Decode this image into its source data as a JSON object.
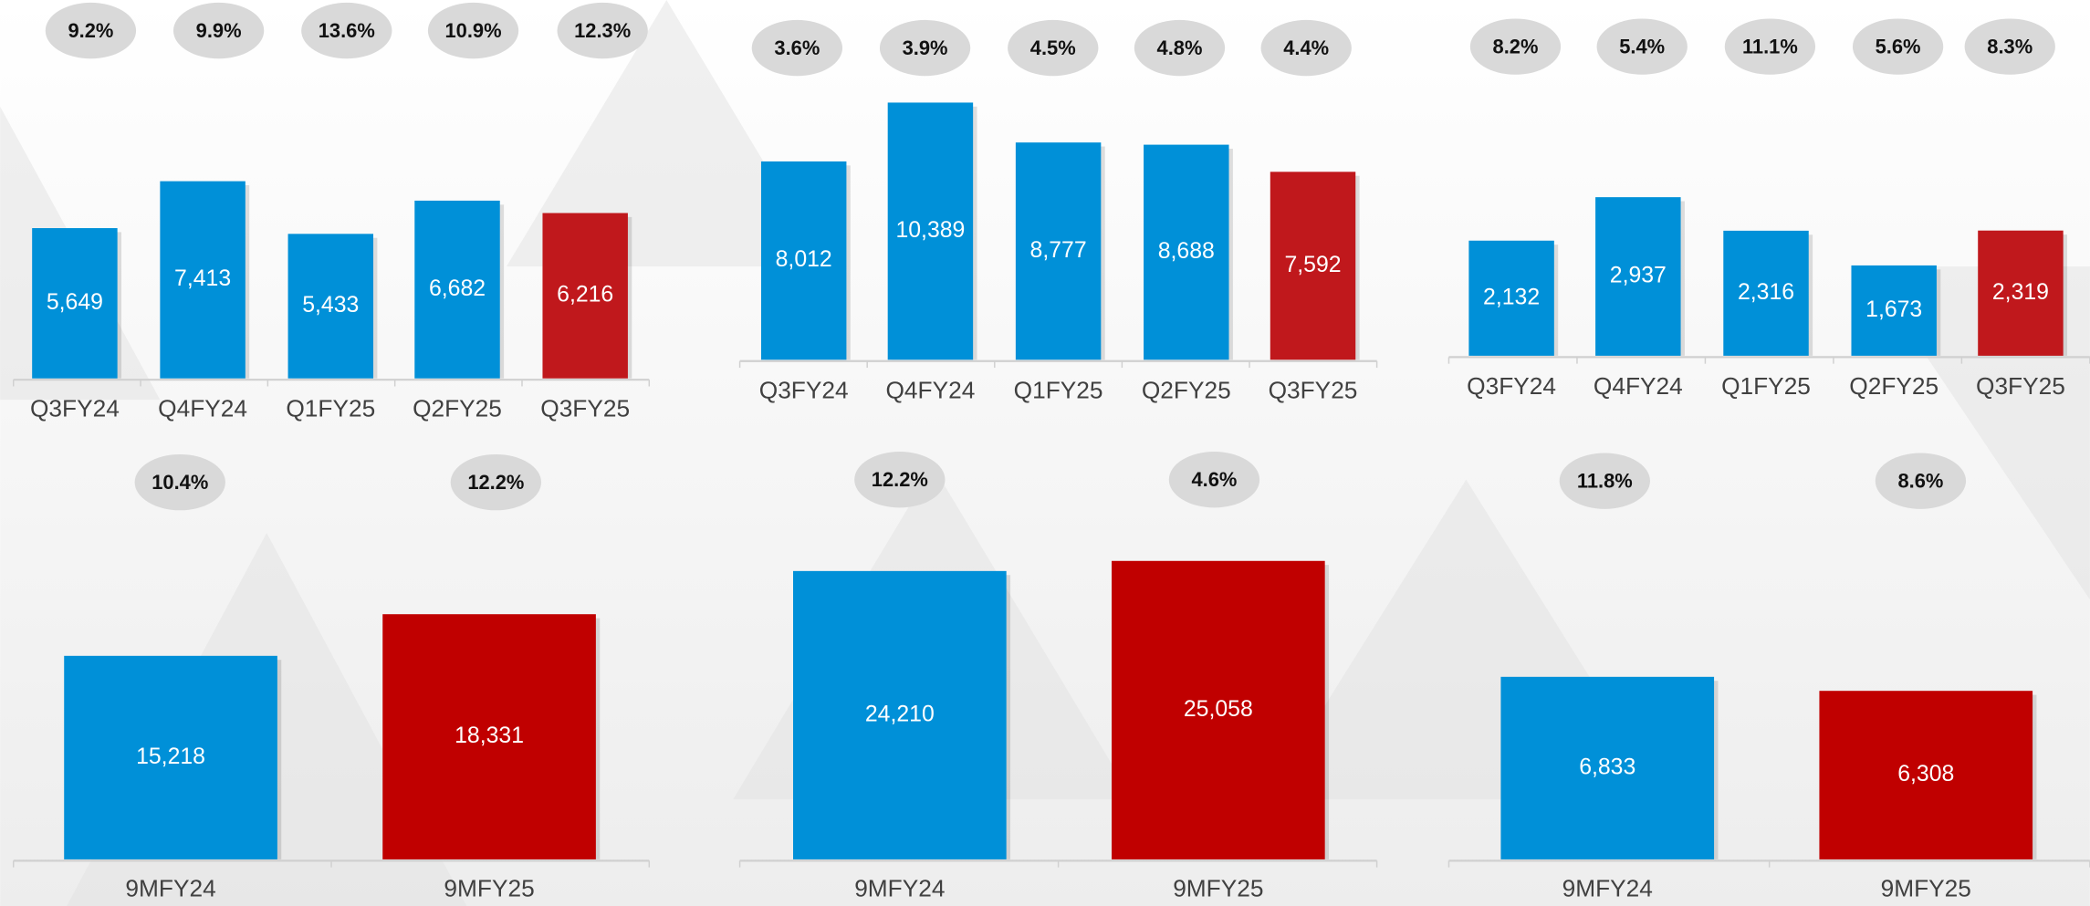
{
  "chart_data": [
    {
      "type": "bar",
      "categories": [
        "Q3FY24",
        "Q4FY24",
        "Q1FY25",
        "Q2FY25",
        "Q3FY25"
      ],
      "values": [
        5649,
        7413,
        5433,
        6682,
        6216
      ],
      "value_labels": [
        "5,649",
        "7,413",
        "5,433",
        "6,682",
        "6,216"
      ],
      "colors": [
        "#0090d8",
        "#0090d8",
        "#0090d8",
        "#0090d8",
        "#c0181c"
      ],
      "annotations": [
        "9.2%",
        "9.9%",
        "13.6%",
        "10.9%",
        "12.3%"
      ]
    },
    {
      "type": "bar",
      "categories": [
        "Q3FY24",
        "Q4FY24",
        "Q1FY25",
        "Q2FY25",
        "Q3FY25"
      ],
      "values": [
        8012,
        10389,
        8777,
        8688,
        7592
      ],
      "value_labels": [
        "8,012",
        "10,389",
        "8,777",
        "8,688",
        "7,592"
      ],
      "colors": [
        "#0090d8",
        "#0090d8",
        "#0090d8",
        "#0090d8",
        "#c0181c"
      ],
      "annotations": [
        "3.6%",
        "3.9%",
        "4.5%",
        "4.8%",
        "4.4%"
      ]
    },
    {
      "type": "bar",
      "categories": [
        "Q3FY24",
        "Q4FY24",
        "Q1FY25",
        "Q2FY25",
        "Q3FY25"
      ],
      "values": [
        2132,
        2937,
        2316,
        1673,
        2319
      ],
      "value_labels": [
        "2,132",
        "2,937",
        "2,316",
        "1,673",
        "2,319"
      ],
      "colors": [
        "#0090d8",
        "#0090d8",
        "#0090d8",
        "#0090d8",
        "#c0181c"
      ],
      "annotations": [
        "8.2%",
        "5.4%",
        "11.1%",
        "5.6%",
        "8.3%"
      ]
    },
    {
      "type": "bar",
      "categories": [
        "9MFY24",
        "9MFY25"
      ],
      "values": [
        15218,
        18331
      ],
      "value_labels": [
        "15,218",
        "18,331"
      ],
      "colors": [
        "#0090d8",
        "#c00000"
      ],
      "annotations": [
        "10.4%",
        "12.2%"
      ]
    },
    {
      "type": "bar",
      "categories": [
        "9MFY24",
        "9MFY25"
      ],
      "values": [
        24210,
        25058
      ],
      "value_labels": [
        "24,210",
        "25,058"
      ],
      "colors": [
        "#0090d8",
        "#c00000"
      ],
      "annotations": [
        "12.2%",
        "4.6%"
      ]
    },
    {
      "type": "bar",
      "categories": [
        "9MFY24",
        "9MFY25"
      ],
      "values": [
        6833,
        6308
      ],
      "value_labels": [
        "6,833",
        "6,308"
      ],
      "colors": [
        "#0090d8",
        "#c00000"
      ],
      "annotations": [
        "11.8%",
        "8.6%"
      ]
    }
  ]
}
